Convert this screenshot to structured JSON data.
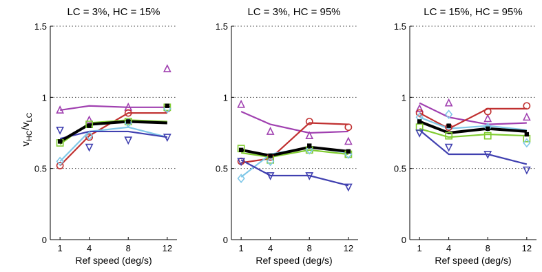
{
  "figure": {
    "ylabel_main": "v",
    "ylabel_sub1": "HC",
    "ylabel_sep": "/v",
    "ylabel_sub2": "LC"
  },
  "chart_data": [
    {
      "type": "line",
      "title": "LC = 3%, HC = 15%",
      "xlabel": "Ref speed (deg/s)",
      "ylabel": "vHC/vLC",
      "x": [
        1,
        4,
        8,
        12
      ],
      "x_tick_labels": [
        "1",
        "4",
        "8",
        "12"
      ],
      "xlim": [
        0,
        13
      ],
      "ylim": [
        0,
        1.5
      ],
      "y_ticks": [
        0,
        0.5,
        1,
        1.5
      ],
      "y_tick_labels": [
        "0",
        "0.5",
        "1",
        "1.5"
      ],
      "grid": "horizontal dotted",
      "series": [
        {
          "color": "#a040b0",
          "marker": "triangle-up",
          "line": [
            0.91,
            0.94,
            0.93,
            0.93
          ],
          "points": [
            0.91,
            0.84,
            0.93,
            1.2
          ]
        },
        {
          "color": "#c03030",
          "marker": "circle",
          "line": [
            0.52,
            0.73,
            0.89,
            0.89
          ],
          "points": [
            0.52,
            0.72,
            0.89,
            0.92
          ]
        },
        {
          "color": "#80cc30",
          "marker": "square",
          "line": [
            0.67,
            0.82,
            0.84,
            0.83
          ],
          "points": [
            0.68,
            0.81,
            0.83,
            0.93
          ]
        },
        {
          "color": "#80c8e8",
          "marker": "diamond",
          "line": [
            0.55,
            0.76,
            0.79,
            0.72
          ],
          "points": [
            0.55,
            0.73,
            0.82,
            0.92
          ]
        },
        {
          "color": "#4040b0",
          "marker": "triangle-down",
          "line": [
            0.71,
            0.76,
            0.76,
            0.72
          ],
          "points": [
            0.77,
            0.65,
            0.7,
            0.72
          ]
        },
        {
          "color": "#000000",
          "marker": "star",
          "line": [
            0.69,
            0.81,
            0.83,
            0.82
          ],
          "points": [
            0.69,
            0.8,
            0.83,
            0.94
          ],
          "bold": true
        }
      ]
    },
    {
      "type": "line",
      "title": "LC = 3%, HC = 95%",
      "xlabel": "Ref speed (deg/s)",
      "ylabel": "",
      "x": [
        1,
        4,
        8,
        12
      ],
      "x_tick_labels": [
        "1",
        "4",
        "8",
        "12"
      ],
      "xlim": [
        0,
        13
      ],
      "ylim": [
        0,
        1.5
      ],
      "y_ticks": [
        0,
        0.5,
        1,
        1.5
      ],
      "y_tick_labels": [
        "0",
        "0.5",
        "1",
        "1.5"
      ],
      "grid": "horizontal dotted",
      "series": [
        {
          "color": "#a040b0",
          "marker": "triangle-up",
          "line": [
            0.9,
            0.81,
            0.75,
            0.76
          ],
          "points": [
            0.95,
            0.76,
            0.73,
            0.69
          ]
        },
        {
          "color": "#c03030",
          "marker": "circle",
          "line": [
            0.54,
            0.57,
            0.82,
            0.81
          ],
          "points": [
            0.55,
            0.58,
            0.83,
            0.79
          ]
        },
        {
          "color": "#80cc30",
          "marker": "square",
          "line": [
            0.61,
            0.58,
            0.63,
            0.6
          ],
          "points": [
            0.64,
            0.56,
            0.63,
            0.6
          ]
        },
        {
          "color": "#80c8e8",
          "marker": "diamond",
          "line": [
            0.44,
            0.6,
            0.65,
            0.61
          ],
          "points": [
            0.43,
            0.55,
            0.63,
            0.6
          ]
        },
        {
          "color": "#4040b0",
          "marker": "triangle-down",
          "line": [
            0.56,
            0.45,
            0.45,
            0.38
          ],
          "points": [
            0.55,
            0.45,
            0.45,
            0.37
          ]
        },
        {
          "color": "#000000",
          "marker": "star",
          "line": [
            0.63,
            0.59,
            0.65,
            0.62
          ],
          "points": [
            0.63,
            0.59,
            0.66,
            0.62
          ],
          "bold": true
        }
      ]
    },
    {
      "type": "line",
      "title": "LC = 15%, HC = 95%",
      "xlabel": "Ref speed (deg/s)",
      "ylabel": "",
      "x": [
        1,
        4,
        8,
        12
      ],
      "x_tick_labels": [
        "1",
        "4",
        "8",
        "12"
      ],
      "xlim": [
        0,
        13
      ],
      "ylim": [
        0,
        1.5
      ],
      "y_ticks": [
        0,
        0.5,
        1,
        1.5
      ],
      "y_tick_labels": [
        "0",
        "0.5",
        "1",
        "1.5"
      ],
      "grid": "horizontal dotted",
      "series": [
        {
          "color": "#a040b0",
          "marker": "triangle-up",
          "line": [
            0.96,
            0.86,
            0.81,
            0.82
          ],
          "points": [
            0.92,
            0.96,
            0.85,
            0.86
          ]
        },
        {
          "color": "#c03030",
          "marker": "circle",
          "line": [
            0.89,
            0.78,
            0.92,
            0.92
          ],
          "points": [
            0.89,
            0.79,
            0.9,
            0.94
          ]
        },
        {
          "color": "#80cc30",
          "marker": "square",
          "line": [
            0.78,
            0.72,
            0.74,
            0.73
          ],
          "points": [
            0.79,
            0.73,
            0.73,
            0.71
          ]
        },
        {
          "color": "#80c8e8",
          "marker": "diamond",
          "line": [
            0.86,
            0.78,
            0.8,
            0.77
          ],
          "points": [
            0.86,
            0.88,
            0.79,
            0.68
          ]
        },
        {
          "color": "#4040b0",
          "marker": "triangle-down",
          "line": [
            0.77,
            0.6,
            0.6,
            0.53
          ],
          "points": [
            0.75,
            0.65,
            0.6,
            0.49
          ]
        },
        {
          "color": "#000000",
          "marker": "star",
          "line": [
            0.83,
            0.75,
            0.78,
            0.76
          ],
          "points": [
            0.83,
            0.8,
            0.78,
            0.74
          ],
          "bold": true
        }
      ]
    }
  ]
}
